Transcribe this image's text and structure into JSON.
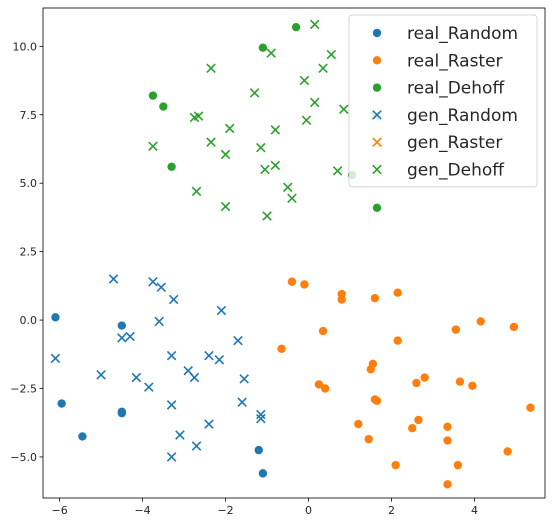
{
  "chart_data": {
    "type": "scatter",
    "xlim": [
      -6.4,
      5.7
    ],
    "ylim": [
      -6.5,
      11.4
    ],
    "xticks": [
      -6,
      -4,
      -2,
      0,
      2,
      4
    ],
    "xtick_labels": [
      "−6",
      "−4",
      "−2",
      "0",
      "2",
      "4"
    ],
    "yticks": [
      -5.0,
      -2.5,
      0.0,
      2.5,
      5.0,
      7.5,
      10.0
    ],
    "ytick_labels": [
      "−5.0",
      "−2.5",
      "0.0",
      "2.5",
      "5.0",
      "7.5",
      "10.0"
    ],
    "grid": false,
    "legend_position": "top-right",
    "series": [
      {
        "name": "real_Random",
        "marker": "circle",
        "color": "#1f77b4",
        "points": [
          [
            -6.1,
            0.1
          ],
          [
            -5.95,
            -3.05
          ],
          [
            -5.45,
            -4.25
          ],
          [
            -4.5,
            -0.2
          ],
          [
            -4.5,
            -3.35
          ],
          [
            -4.5,
            -3.4
          ],
          [
            -1.2,
            -4.75
          ],
          [
            -1.1,
            -5.6
          ]
        ]
      },
      {
        "name": "real_Raster",
        "marker": "circle",
        "color": "#ff7f0e",
        "points": [
          [
            -0.4,
            1.4
          ],
          [
            -0.1,
            1.3
          ],
          [
            0.8,
            0.95
          ],
          [
            0.8,
            0.75
          ],
          [
            1.6,
            0.8
          ],
          [
            2.15,
            1.0
          ],
          [
            -0.65,
            -1.05
          ],
          [
            0.35,
            -0.4
          ],
          [
            2.15,
            -0.75
          ],
          [
            3.55,
            -0.35
          ],
          [
            4.15,
            -0.05
          ],
          [
            4.95,
            -0.25
          ],
          [
            0.25,
            -2.35
          ],
          [
            0.4,
            -2.5
          ],
          [
            1.5,
            -1.8
          ],
          [
            1.55,
            -1.6
          ],
          [
            1.6,
            -2.9
          ],
          [
            1.65,
            -2.95
          ],
          [
            2.6,
            -2.3
          ],
          [
            2.8,
            -2.1
          ],
          [
            3.65,
            -2.25
          ],
          [
            3.95,
            -2.4
          ],
          [
            1.2,
            -3.8
          ],
          [
            1.45,
            -4.35
          ],
          [
            2.5,
            -3.95
          ],
          [
            2.65,
            -3.65
          ],
          [
            3.35,
            -3.9
          ],
          [
            3.35,
            -4.4
          ],
          [
            3.6,
            -5.3
          ],
          [
            2.1,
            -5.3
          ],
          [
            3.35,
            -6.0
          ],
          [
            4.8,
            -4.8
          ],
          [
            5.35,
            -3.2
          ]
        ]
      },
      {
        "name": "real_Dehoff",
        "marker": "circle",
        "color": "#2ca02c",
        "points": [
          [
            -1.1,
            9.95
          ],
          [
            -0.3,
            10.7
          ],
          [
            -3.75,
            8.2
          ],
          [
            -3.5,
            7.8
          ],
          [
            -3.3,
            5.6
          ],
          [
            1.05,
            5.3
          ],
          [
            1.65,
            4.1
          ]
        ]
      },
      {
        "name": "gen_Random",
        "marker": "x",
        "color": "#1f77b4",
        "points": [
          [
            -6.1,
            -1.4
          ],
          [
            -4.7,
            1.5
          ],
          [
            -3.75,
            1.4
          ],
          [
            -3.55,
            1.2
          ],
          [
            -3.25,
            0.75
          ],
          [
            -3.6,
            -0.05
          ],
          [
            -4.5,
            -0.65
          ],
          [
            -4.3,
            -0.6
          ],
          [
            -5.0,
            -2.0
          ],
          [
            -4.15,
            -2.1
          ],
          [
            -3.85,
            -2.45
          ],
          [
            -3.3,
            -1.3
          ],
          [
            -2.9,
            -1.85
          ],
          [
            -2.75,
            -2.1
          ],
          [
            -2.4,
            -1.3
          ],
          [
            -2.15,
            -1.45
          ],
          [
            -2.1,
            0.35
          ],
          [
            -1.7,
            -0.75
          ],
          [
            -1.55,
            -2.15
          ],
          [
            -1.6,
            -3.0
          ],
          [
            -1.15,
            -3.45
          ],
          [
            -1.15,
            -3.6
          ],
          [
            -3.3,
            -3.1
          ],
          [
            -3.1,
            -4.2
          ],
          [
            -2.7,
            -4.6
          ],
          [
            -2.4,
            -3.8
          ],
          [
            -3.3,
            -5.0
          ]
        ]
      },
      {
        "name": "gen_Raster",
        "marker": "x",
        "color": "#ff7f0e",
        "points": []
      },
      {
        "name": "gen_Dehoff",
        "marker": "x",
        "color": "#2ca02c",
        "points": [
          [
            -0.9,
            9.75
          ],
          [
            0.15,
            10.8
          ],
          [
            0.55,
            9.7
          ],
          [
            0.35,
            9.2
          ],
          [
            -0.1,
            8.75
          ],
          [
            -2.35,
            9.2
          ],
          [
            -1.3,
            8.3
          ],
          [
            -2.75,
            7.4
          ],
          [
            -2.65,
            7.45
          ],
          [
            -0.05,
            7.3
          ],
          [
            0.15,
            7.95
          ],
          [
            0.85,
            7.7
          ],
          [
            1.6,
            7.45
          ],
          [
            -3.75,
            6.35
          ],
          [
            -2.35,
            6.5
          ],
          [
            -1.9,
            7.0
          ],
          [
            -2.0,
            6.05
          ],
          [
            -0.8,
            6.95
          ],
          [
            -1.15,
            6.3
          ],
          [
            -1.05,
            5.5
          ],
          [
            -0.8,
            5.65
          ],
          [
            -0.5,
            4.85
          ],
          [
            -0.4,
            4.45
          ],
          [
            0.7,
            5.45
          ],
          [
            -2.7,
            4.7
          ],
          [
            -2.0,
            4.15
          ],
          [
            -1.0,
            3.8
          ]
        ]
      }
    ]
  }
}
